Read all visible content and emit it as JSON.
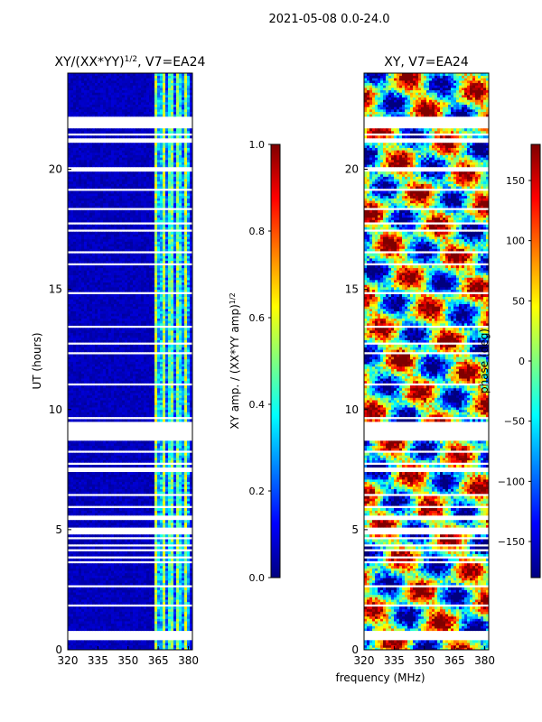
{
  "suptitle": "2021-05-08 0.0-24.0",
  "shared_xlabel": "frequency (MHz)",
  "colors": {
    "jet": [
      "#00007f",
      "#0000ff",
      "#007fff",
      "#00ffff",
      "#7fff7f",
      "#ffff00",
      "#ff7f00",
      "#ff0000",
      "#7f0000"
    ],
    "gap": "#ffffff",
    "axes": "#000000"
  },
  "chart_data": [
    {
      "type": "heatmap",
      "title_main": "XY/(XX*YY)",
      "title_exp": "1/2",
      "title_suffix": ", V7=EA24",
      "xlabel": "",
      "ylabel": "UT (hours)",
      "xlim": [
        320,
        382
      ],
      "ylim": [
        0,
        24
      ],
      "xticks": [
        320,
        335,
        350,
        365,
        380
      ],
      "yticks": [
        0,
        5,
        10,
        15,
        20
      ],
      "colorbar": {
        "label_main": "XY amp. / (XX*YY amp)",
        "label_exp": "1/2",
        "range": [
          0.0,
          1.0
        ],
        "ticks": [
          0.0,
          0.2,
          0.4,
          0.6,
          0.8,
          1.0
        ],
        "tick_labels": [
          "0.0",
          "0.2",
          "0.4",
          "0.6",
          "0.8",
          "1.0"
        ]
      },
      "value_summary": "amplitude mostly near 0.0-0.1 below 363 MHz; 0.3-0.6 in the 363-380 MHz band"
    },
    {
      "type": "heatmap",
      "title": "XY, V7=EA24",
      "xlabel": "frequency (MHz)",
      "ylabel": "",
      "xlim": [
        320,
        382
      ],
      "ylim": [
        0,
        24
      ],
      "xticks": [
        320,
        335,
        350,
        365,
        380
      ],
      "yticks": [
        0,
        5,
        10,
        15,
        20
      ],
      "colorbar": {
        "label": "phase (deg)",
        "range": [
          -180,
          180
        ],
        "ticks": [
          -150,
          -100,
          -50,
          0,
          50,
          100,
          150
        ],
        "tick_labels": [
          "−150",
          "−100",
          "−50",
          "0",
          "50",
          "100",
          "150"
        ]
      },
      "value_summary": "phase varies across full -180 to 180 deg range"
    }
  ]
}
